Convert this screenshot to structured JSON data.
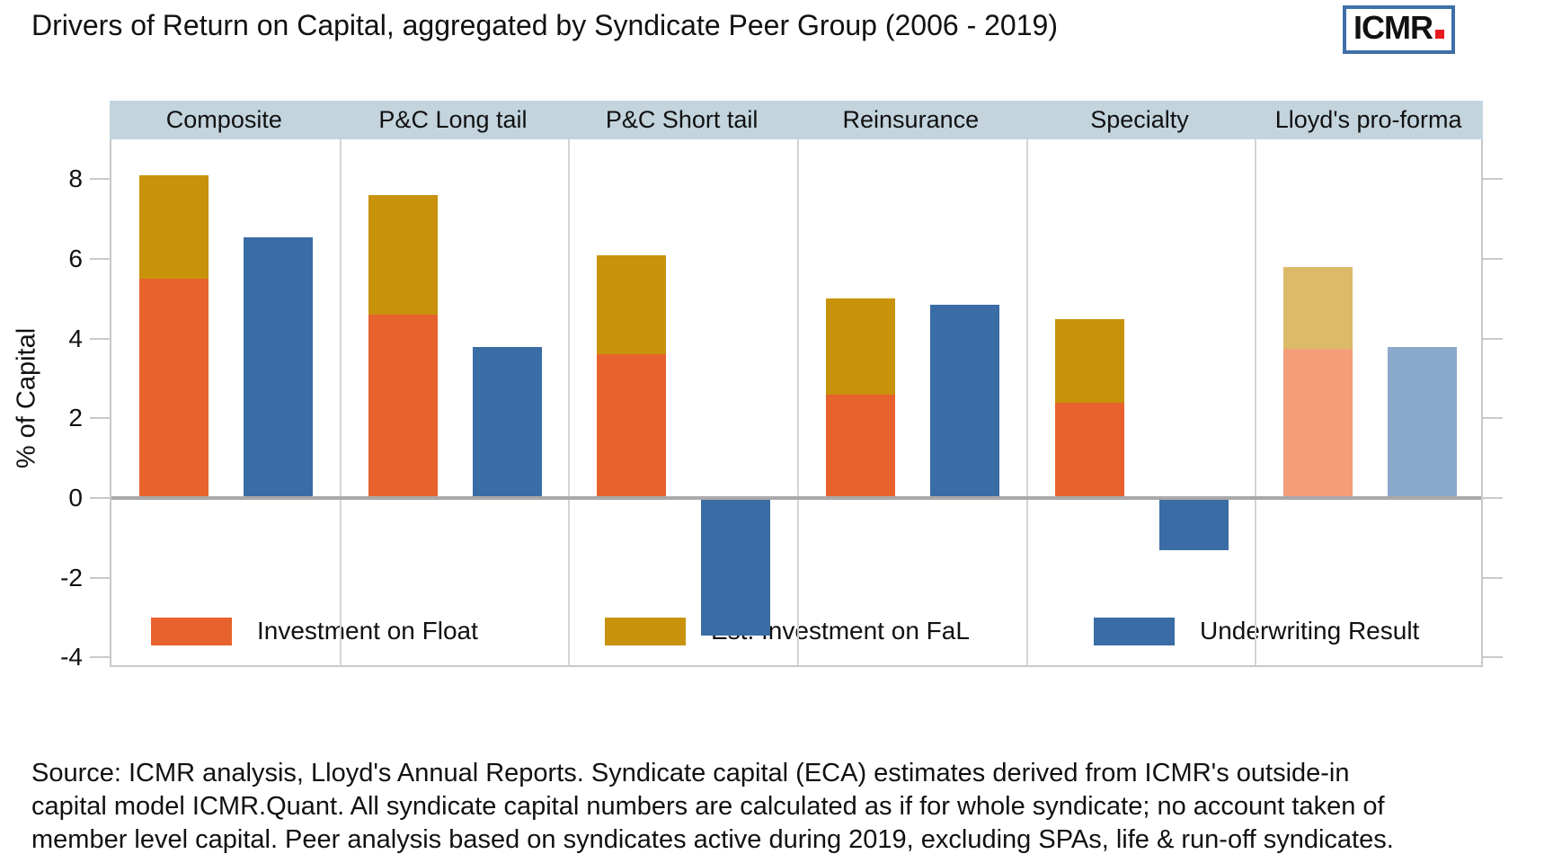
{
  "header": {
    "title": "Drivers of Return on Capital, aggregated by Syndicate Peer Group (2006 - 2019)",
    "logo_text": "ICMR",
    "logo_border_color": "#3f6fa8",
    "logo_dot_color": "#e8191f"
  },
  "chart_data": {
    "type": "bar",
    "title": "Drivers of Return on Capital, aggregated by Syndicate Peer Group (2006 - 2019)",
    "ylabel": "% of Capital",
    "ylim": [
      -4.25,
      9.0
    ],
    "yticks": [
      8,
      6,
      4,
      2,
      0,
      -2,
      -4
    ],
    "grid": false,
    "legend_position": "bottom",
    "categories": [
      "Composite",
      "P&C Long tail",
      "P&C Short tail",
      "Reinsurance",
      "Specialty",
      "Lloyd's pro-forma"
    ],
    "series": [
      {
        "name": "Investment on Float",
        "color": "#e8622d",
        "faded_color": "#f39e78",
        "stacked": true,
        "values": [
          5.5,
          4.6,
          3.6,
          2.6,
          2.4,
          3.75
        ]
      },
      {
        "name": "Est. Investment on FaL",
        "color": "#c8930b",
        "faded_color": "#dcba6a",
        "stacked": true,
        "values": [
          2.6,
          3.0,
          2.5,
          2.4,
          2.1,
          2.05
        ]
      },
      {
        "name": "Underwriting Result",
        "color": "#3a6ca5",
        "faded_color": "#8aa8ca",
        "stacked": false,
        "values": [
          6.55,
          3.8,
          -3.45,
          4.85,
          -1.3,
          3.8
        ]
      }
    ],
    "stack_totals": [
      8.1,
      7.6,
      6.1,
      5.0,
      4.5,
      5.8
    ],
    "faded_group": "Lloyd's pro-forma",
    "panel_header_bg": "#c3d4dd",
    "zero_line_color": "#a9a9a9",
    "axis_color": "#c9c9c9"
  },
  "footer": {
    "lines": [
      "Source: ICMR analysis, Lloyd's Annual Reports. Syndicate capital (ECA) estimates derived from ICMR's outside-in",
      "capital model ICMR.Quant. All syndicate capital numbers are calculated as if for whole syndicate; no account taken of",
      "member level capital. Peer analysis based on syndicates active during 2019, excluding SPAs, life & run-off syndicates."
    ]
  }
}
